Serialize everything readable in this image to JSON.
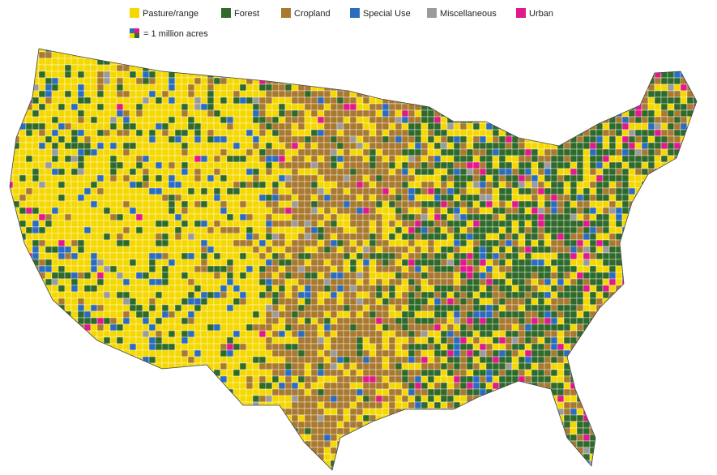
{
  "legend": {
    "items": [
      {
        "label": "Pasture/range",
        "color": "#f5d800"
      },
      {
        "label": "Forest",
        "color": "#2f6a2b"
      },
      {
        "label": "Cropland",
        "color": "#a8792f"
      },
      {
        "label": "Special Use",
        "color": "#2b6cc0"
      },
      {
        "label": "Miscellaneous",
        "color": "#9b9b9b"
      },
      {
        "label": "Urban",
        "color": "#e2198b"
      }
    ]
  },
  "scale_note": "= 1 million acres"
}
